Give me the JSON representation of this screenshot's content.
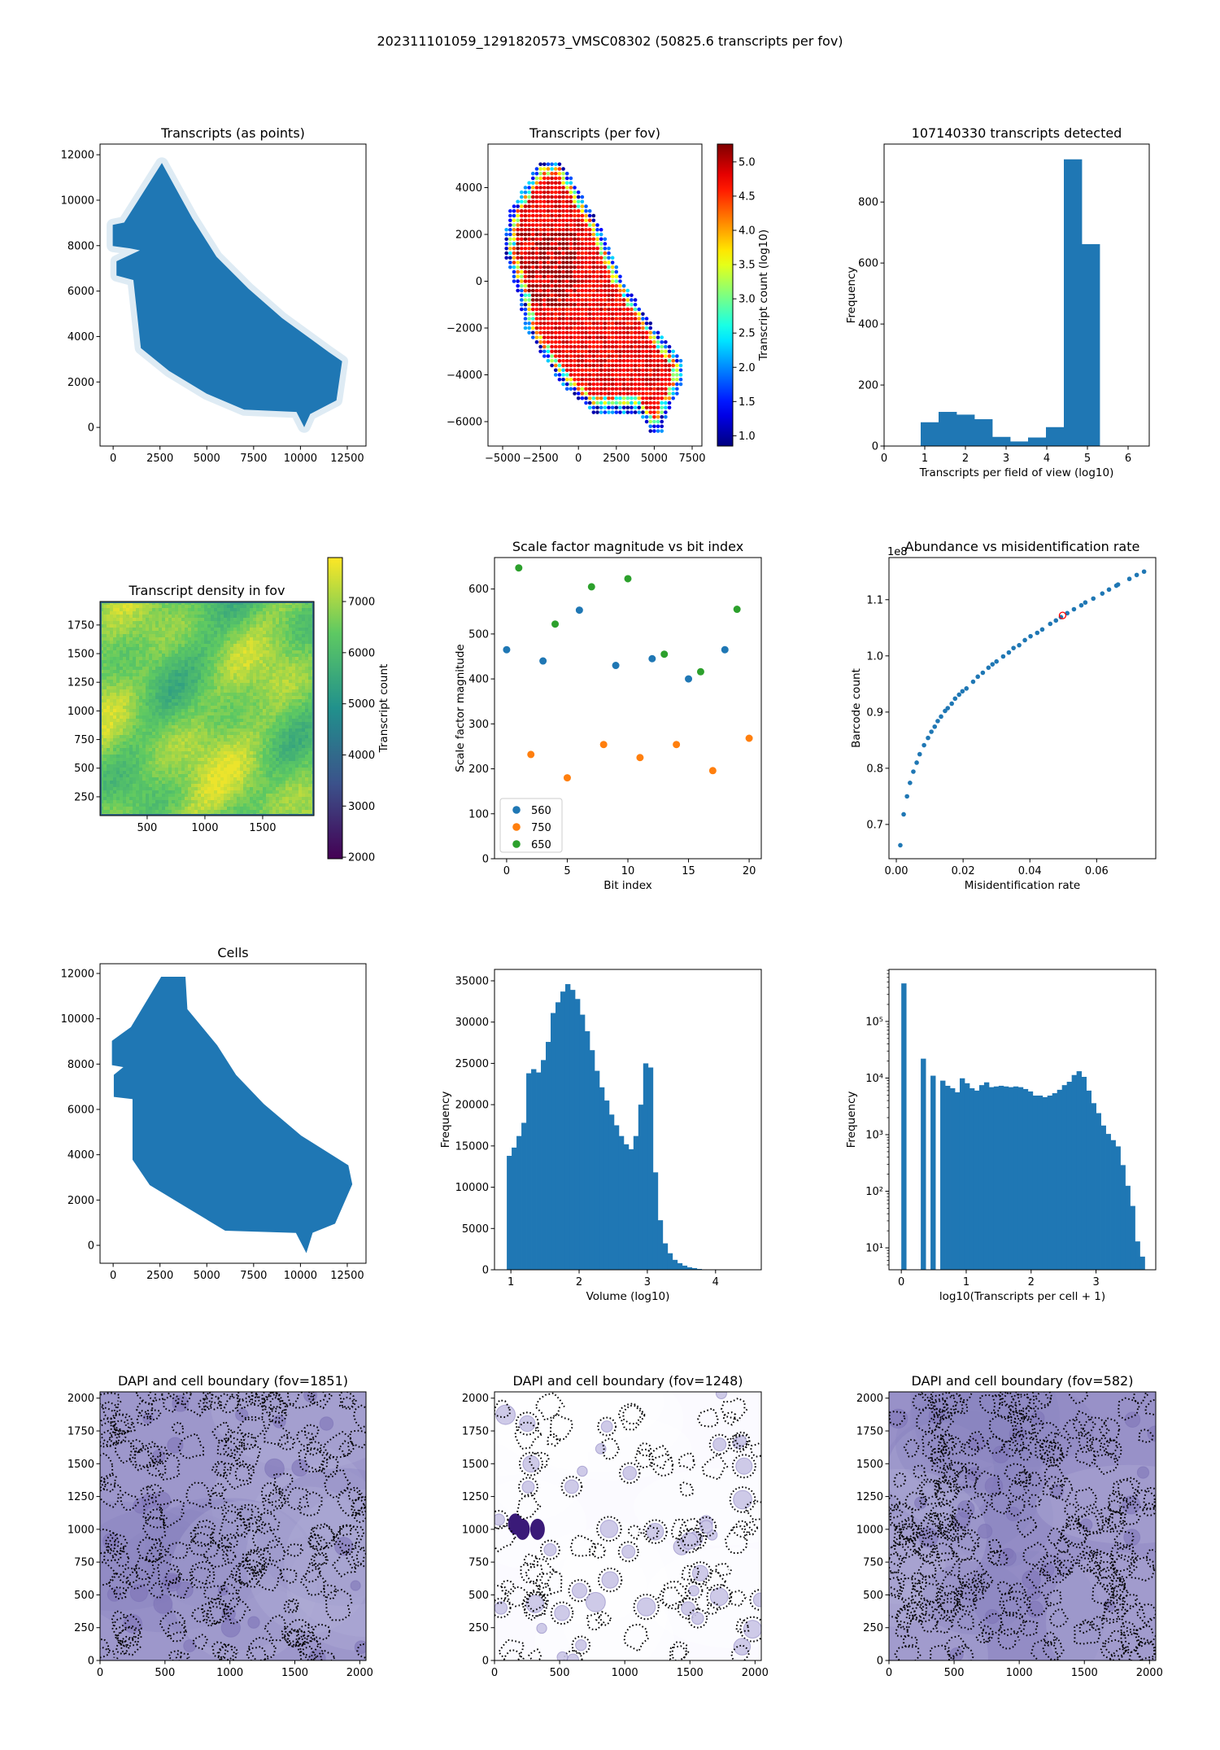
{
  "suptitle": "202311101059_1291820573_VMSC08302 (50825.6 transcripts per fov)",
  "colors": {
    "blue": "#1f77b4",
    "orange": "#ff7f0e",
    "green": "#2ca02c",
    "highlight": "#ff0000"
  },
  "panels": [
    {
      "title": "Transcripts (as points)",
      "xlabel": "",
      "ylabel": "",
      "xlim": [
        -700,
        13500
      ],
      "ylim": [
        -820,
        12470
      ],
      "xticks": [
        0,
        2500,
        5000,
        7500,
        10000,
        12500
      ],
      "xticklabels": [
        "0",
        "2500",
        "5000",
        "7500",
        "10000",
        "12500"
      ],
      "yticks": [
        0,
        2000,
        4000,
        6000,
        8000,
        10000,
        12000
      ],
      "yticklabels": [
        "0",
        "2000",
        "4000",
        "6000",
        "8000",
        "10000",
        "12000"
      ]
    },
    {
      "title": "Transcripts (per fov)",
      "xlabel": "",
      "ylabel": "",
      "xlim": [
        -5966,
        8144
      ],
      "ylim": [
        -7043,
        5861
      ],
      "xticks": [
        -5000,
        -2500,
        0,
        2500,
        5000,
        7500
      ],
      "xticklabels": [
        "−5000",
        "−2500",
        "0",
        "2500",
        "5000",
        "7500"
      ],
      "yticks": [
        -6000,
        -4000,
        -2000,
        0,
        2000,
        4000
      ],
      "yticklabels": [
        "−6000",
        "−4000",
        "−2000",
        "0",
        "2000",
        "4000"
      ],
      "colorbar": {
        "label": "Transcript count (log10)",
        "range": [
          0.85,
          5.26
        ],
        "colormap": "jet",
        "ticks": [
          1.0,
          1.5,
          2.0,
          2.5,
          3.0,
          3.5,
          4.0,
          4.5,
          5.0
        ],
        "ticklabels": [
          "1.0",
          "1.5",
          "2.0",
          "2.5",
          "3.0",
          "3.5",
          "4.0",
          "4.5",
          "5.0"
        ]
      }
    },
    {
      "title": "107140330 transcripts detected",
      "xlabel": "Transcripts per field of view (log10)",
      "ylabel": "Frequency",
      "xlim": [
        0,
        6.52
      ],
      "ylim": [
        0,
        990
      ],
      "xticks": [
        0,
        1,
        2,
        3,
        4,
        5,
        6
      ],
      "xticklabels": [
        "0",
        "1",
        "2",
        "3",
        "4",
        "5",
        "6"
      ],
      "yticks": [
        0,
        200,
        400,
        600,
        800
      ],
      "yticklabels": [
        "0",
        "200",
        "400",
        "600",
        "800"
      ]
    },
    {
      "title": "Transcript density in fov",
      "xlabel": "",
      "ylabel": "",
      "xlim": [
        92,
        1944
      ],
      "ylim": [
        86,
        1955
      ],
      "xticks": [
        500,
        1000,
        1500
      ],
      "xticklabels": [
        "500",
        "1000",
        "1500"
      ],
      "yticks": [
        250,
        500,
        750,
        1000,
        1250,
        1500,
        1750
      ],
      "yticklabels": [
        "250",
        "500",
        "750",
        "1000",
        "1250",
        "1500",
        "1750"
      ],
      "colorbar": {
        "label": "Transcript count",
        "range": [
          1970,
          7860
        ],
        "colormap": "viridis",
        "ticks": [
          2000,
          3000,
          4000,
          5000,
          6000,
          7000
        ],
        "ticklabels": [
          "2000",
          "3000",
          "4000",
          "5000",
          "6000",
          "7000"
        ]
      }
    },
    {
      "title": "Scale factor magnitude vs bit index",
      "xlabel": "Bit index",
      "ylabel": "Scale factor magnitude",
      "xlim": [
        -1,
        21
      ],
      "ylim": [
        0,
        670
      ],
      "xticks": [
        0,
        5,
        10,
        15,
        20
      ],
      "xticklabels": [
        "0",
        "5",
        "10",
        "15",
        "20"
      ],
      "yticks": [
        0,
        100,
        200,
        300,
        400,
        500,
        600
      ],
      "yticklabels": [
        "0",
        "100",
        "200",
        "300",
        "400",
        "500",
        "600"
      ]
    },
    {
      "title": "Abundance vs misidentification rate",
      "xlabel": "Misidentification rate",
      "ylabel": "Barcode count",
      "offset_text": "1e8",
      "xlim": [
        -0.0022,
        0.0777
      ],
      "ylim": [
        0.639,
        1.175
      ],
      "xticks": [
        0,
        0.02,
        0.04,
        0.06
      ],
      "xticklabels": [
        "0.00",
        "0.02",
        "0.04",
        "0.06"
      ],
      "yticks": [
        0.7,
        0.8,
        0.9,
        1.0,
        1.1
      ],
      "yticklabels": [
        "0.7",
        "0.8",
        "0.9",
        "1.0",
        "1.1"
      ]
    },
    {
      "title": "Cells",
      "xlabel": "",
      "ylabel": "",
      "xlim": [
        -700,
        13500
      ],
      "ylim": [
        -790,
        12430
      ],
      "xticks": [
        0,
        2500,
        5000,
        7500,
        10000,
        12500
      ],
      "xticklabels": [
        "0",
        "2500",
        "5000",
        "7500",
        "10000",
        "12500"
      ],
      "yticks": [
        0,
        2000,
        4000,
        6000,
        8000,
        10000,
        12000
      ],
      "yticklabels": [
        "0",
        "2000",
        "4000",
        "6000",
        "8000",
        "10000",
        "12000"
      ]
    },
    {
      "title": "",
      "xlabel": "Volume (log10)",
      "ylabel": "Frequency",
      "xlim": [
        0.76,
        4.67
      ],
      "ylim": [
        0,
        36380
      ],
      "xticks": [
        1,
        2,
        3,
        4
      ],
      "xticklabels": [
        "1",
        "2",
        "3",
        "4"
      ],
      "yticks": [
        0,
        5000,
        10000,
        15000,
        20000,
        25000,
        30000,
        35000
      ],
      "yticklabels": [
        "0",
        "5000",
        "10000",
        "15000",
        "20000",
        "25000",
        "30000",
        "35000"
      ]
    },
    {
      "title": "",
      "xlabel": "log10(Transcripts per cell + 1)",
      "ylabel": "Frequency",
      "ylog": true,
      "xlim": [
        -0.19,
        3.92
      ],
      "ylim": [
        4.1,
        830000
      ],
      "xticks": [
        0,
        1,
        2,
        3
      ],
      "xticklabels": [
        "0",
        "1",
        "2",
        "3"
      ],
      "yticks": [
        10,
        100,
        1000,
        10000,
        100000
      ],
      "yticklabels": [
        "10¹",
        "10²",
        "10³",
        "10⁴",
        "10⁵"
      ]
    },
    {
      "title": "DAPI and cell boundary (fov=1851)",
      "xlabel": "",
      "ylabel": "",
      "xlim": [
        0,
        2048
      ],
      "ylim": [
        0,
        2048
      ],
      "xticks": [
        0,
        500,
        1000,
        1500,
        2000
      ],
      "xticklabels": [
        "0",
        "500",
        "1000",
        "1500",
        "2000"
      ],
      "yticks": [
        0,
        250,
        500,
        750,
        1000,
        1250,
        1500,
        1750,
        2000
      ],
      "yticklabels": [
        "0",
        "250",
        "500",
        "750",
        "1000",
        "1250",
        "1500",
        "1750",
        "2000"
      ]
    },
    {
      "title": "DAPI and cell boundary (fov=1248)",
      "xlabel": "",
      "ylabel": "",
      "xlim": [
        0,
        2048
      ],
      "ylim": [
        0,
        2048
      ],
      "xticks": [
        0,
        500,
        1000,
        1500,
        2000
      ],
      "xticklabels": [
        "0",
        "500",
        "1000",
        "1500",
        "2000"
      ],
      "yticks": [
        0,
        250,
        500,
        750,
        1000,
        1250,
        1500,
        1750,
        2000
      ],
      "yticklabels": [
        "0",
        "250",
        "500",
        "750",
        "1000",
        "1250",
        "1500",
        "1750",
        "2000"
      ]
    },
    {
      "title": "DAPI and cell boundary (fov=582)",
      "xlabel": "",
      "ylabel": "",
      "xlim": [
        0,
        2048
      ],
      "ylim": [
        0,
        2048
      ],
      "xticks": [
        0,
        500,
        1000,
        1500,
        2000
      ],
      "xticklabels": [
        "0",
        "500",
        "1000",
        "1500",
        "2000"
      ],
      "yticks": [
        0,
        250,
        500,
        750,
        1000,
        1250,
        1500,
        1750,
        2000
      ],
      "yticklabels": [
        "0",
        "250",
        "500",
        "750",
        "1000",
        "1250",
        "1500",
        "1750",
        "2000"
      ]
    }
  ],
  "chart_data": [
    {
      "type": "scatter",
      "title": "Transcripts (as points)",
      "outline": [
        [
          2600,
          11600
        ],
        [
          4200,
          9200
        ],
        [
          5500,
          7500
        ],
        [
          7200,
          6100
        ],
        [
          9000,
          4800
        ],
        [
          11500,
          3300
        ],
        [
          12200,
          2900
        ],
        [
          11900,
          1200
        ],
        [
          10500,
          600
        ],
        [
          10200,
          50
        ],
        [
          9800,
          700
        ],
        [
          7000,
          800
        ],
        [
          5000,
          1500
        ],
        [
          3000,
          2500
        ],
        [
          1500,
          3500
        ],
        [
          1100,
          6500
        ],
        [
          200,
          6700
        ],
        [
          200,
          7300
        ],
        [
          1500,
          7800
        ],
        [
          900,
          7900
        ],
        [
          0,
          8000
        ],
        [
          0,
          8900
        ],
        [
          600,
          9000
        ]
      ]
    },
    {
      "type": "scatter",
      "title": "Transcripts (per fov)",
      "color_scale": "log10 transcript count",
      "outline": [
        [
          -2500,
          5200
        ],
        [
          -1200,
          5200
        ],
        [
          1500,
          2300
        ],
        [
          3000,
          0
        ],
        [
          5000,
          -2000
        ],
        [
          7000,
          -3500
        ],
        [
          7000,
          -4200
        ],
        [
          6000,
          -5500
        ],
        [
          5500,
          -6500
        ],
        [
          4800,
          -6500
        ],
        [
          4000,
          -5600
        ],
        [
          1000,
          -5600
        ],
        [
          -1000,
          -4500
        ],
        [
          -3500,
          -2000
        ],
        [
          -4000,
          -500
        ],
        [
          -5000,
          1500
        ],
        [
          -4500,
          3000
        ]
      ],
      "interior_value": 4.8,
      "edge_value_range": [
        0.9,
        2.5
      ]
    },
    {
      "type": "bar",
      "title": "107140330 transcripts detected",
      "bin_start": 0.9,
      "bin_width": 0.44,
      "values": [
        78,
        112,
        103,
        88,
        30,
        15,
        28,
        62,
        940,
        662
      ]
    },
    {
      "type": "heatmap",
      "title": "Transcript density in fov",
      "value_range": [
        5200,
        7700
      ]
    },
    {
      "type": "scatter",
      "title": "Scale factor magnitude vs bit index",
      "legend": "lower-left",
      "series": [
        {
          "name": "560",
          "x": [
            0,
            3,
            6,
            9,
            12,
            15,
            18
          ],
          "y": [
            465,
            440,
            553,
            430,
            445,
            400,
            465
          ]
        },
        {
          "name": "750",
          "x": [
            2,
            5,
            8,
            11,
            14,
            17,
            20
          ],
          "y": [
            232,
            180,
            254,
            225,
            254,
            196,
            268
          ]
        },
        {
          "name": "650",
          "x": [
            1,
            4,
            7,
            10,
            13,
            16,
            19
          ],
          "y": [
            647,
            522,
            605,
            623,
            455,
            416,
            555
          ]
        }
      ]
    },
    {
      "type": "scatter",
      "title": "Abundance vs misidentification rate",
      "y_scale": 100000000.0,
      "x": [
        0.0012,
        0.0022,
        0.0032,
        0.0041,
        0.0051,
        0.0061,
        0.007,
        0.0083,
        0.0095,
        0.0105,
        0.0115,
        0.0124,
        0.0134,
        0.0146,
        0.0154,
        0.0166,
        0.0176,
        0.0188,
        0.0198,
        0.021,
        0.023,
        0.0244,
        0.0259,
        0.0276,
        0.0288,
        0.03,
        0.032,
        0.0337,
        0.0351,
        0.0368,
        0.0385,
        0.0402,
        0.0422,
        0.0437,
        0.0461,
        0.0478,
        0.0493,
        0.0512,
        0.0532,
        0.0554,
        0.0566,
        0.059,
        0.0617,
        0.0637,
        0.0659,
        0.0664,
        0.0698,
        0.072,
        0.0742
      ],
      "y": [
        0.663,
        0.718,
        0.75,
        0.774,
        0.794,
        0.81,
        0.825,
        0.841,
        0.854,
        0.865,
        0.874,
        0.884,
        0.892,
        0.902,
        0.907,
        0.915,
        0.924,
        0.931,
        0.937,
        0.942,
        0.954,
        0.963,
        0.97,
        0.979,
        0.985,
        0.99,
        0.999,
        1.006,
        1.014,
        1.019,
        1.028,
        1.035,
        1.041,
        1.047,
        1.057,
        1.063,
        1.069,
        1.076,
        1.083,
        1.09,
        1.095,
        1.102,
        1.111,
        1.118,
        1.125,
        1.127,
        1.137,
        1.144,
        1.15
      ],
      "highlight": {
        "x": 0.0498,
        "y": 1.072
      }
    },
    {
      "type": "scatter",
      "title": "Cells",
      "outline": [
        [
          2600,
          11800
        ],
        [
          3800,
          11800
        ],
        [
          3900,
          10400
        ],
        [
          5500,
          8800
        ],
        [
          6500,
          7500
        ],
        [
          8000,
          6200
        ],
        [
          10000,
          4800
        ],
        [
          12500,
          3500
        ],
        [
          12700,
          2700
        ],
        [
          11800,
          1000
        ],
        [
          10600,
          600
        ],
        [
          10300,
          -200
        ],
        [
          9800,
          600
        ],
        [
          6000,
          700
        ],
        [
          4000,
          1700
        ],
        [
          2000,
          2700
        ],
        [
          1100,
          3800
        ],
        [
          1100,
          6500
        ],
        [
          100,
          6600
        ],
        [
          100,
          7500
        ],
        [
          700,
          7900
        ],
        [
          0,
          8000
        ],
        [
          0,
          9000
        ],
        [
          1000,
          9600
        ]
      ]
    },
    {
      "type": "bar",
      "xlabel": "Volume (log10)",
      "bin_start": 0.94,
      "bin_width": 0.0714,
      "values": [
        13800,
        14800,
        16200,
        17800,
        23800,
        24300,
        23900,
        25400,
        27600,
        31100,
        32400,
        33700,
        34600,
        33900,
        32800,
        30900,
        28900,
        26600,
        24100,
        22100,
        20500,
        18800,
        17500,
        16200,
        15200,
        14600,
        16200,
        20000,
        25000,
        24500,
        11800,
        6000,
        3200,
        2000,
        1200,
        800,
        500,
        300,
        200,
        100,
        50,
        30,
        20,
        10,
        5,
        5,
        3,
        2,
        1,
        1
      ]
    },
    {
      "type": "bar",
      "xlabel": "log10(Transcripts per cell + 1)",
      "y_scale": "log",
      "bin_start": 0,
      "bin_width": 0.075,
      "values": [
        470000,
        0,
        0,
        0,
        22000,
        0,
        11000,
        0,
        9000,
        7300,
        6600,
        5600,
        9900,
        8100,
        6600,
        6000,
        7500,
        8400,
        6900,
        7100,
        7300,
        7100,
        6900,
        7100,
        6900,
        6400,
        5800,
        4900,
        4900,
        4600,
        4900,
        5400,
        6200,
        7500,
        8600,
        11300,
        13200,
        10500,
        6000,
        3600,
        2400,
        1450,
        1030,
        800,
        620,
        290,
        125,
        55,
        13,
        7
      ]
    },
    {
      "type": "heatmap",
      "title": "DAPI and cell boundary (fov=1851)"
    },
    {
      "type": "heatmap",
      "title": "DAPI and cell boundary (fov=1248)"
    },
    {
      "type": "heatmap",
      "title": "DAPI and cell boundary (fov=582)"
    }
  ]
}
